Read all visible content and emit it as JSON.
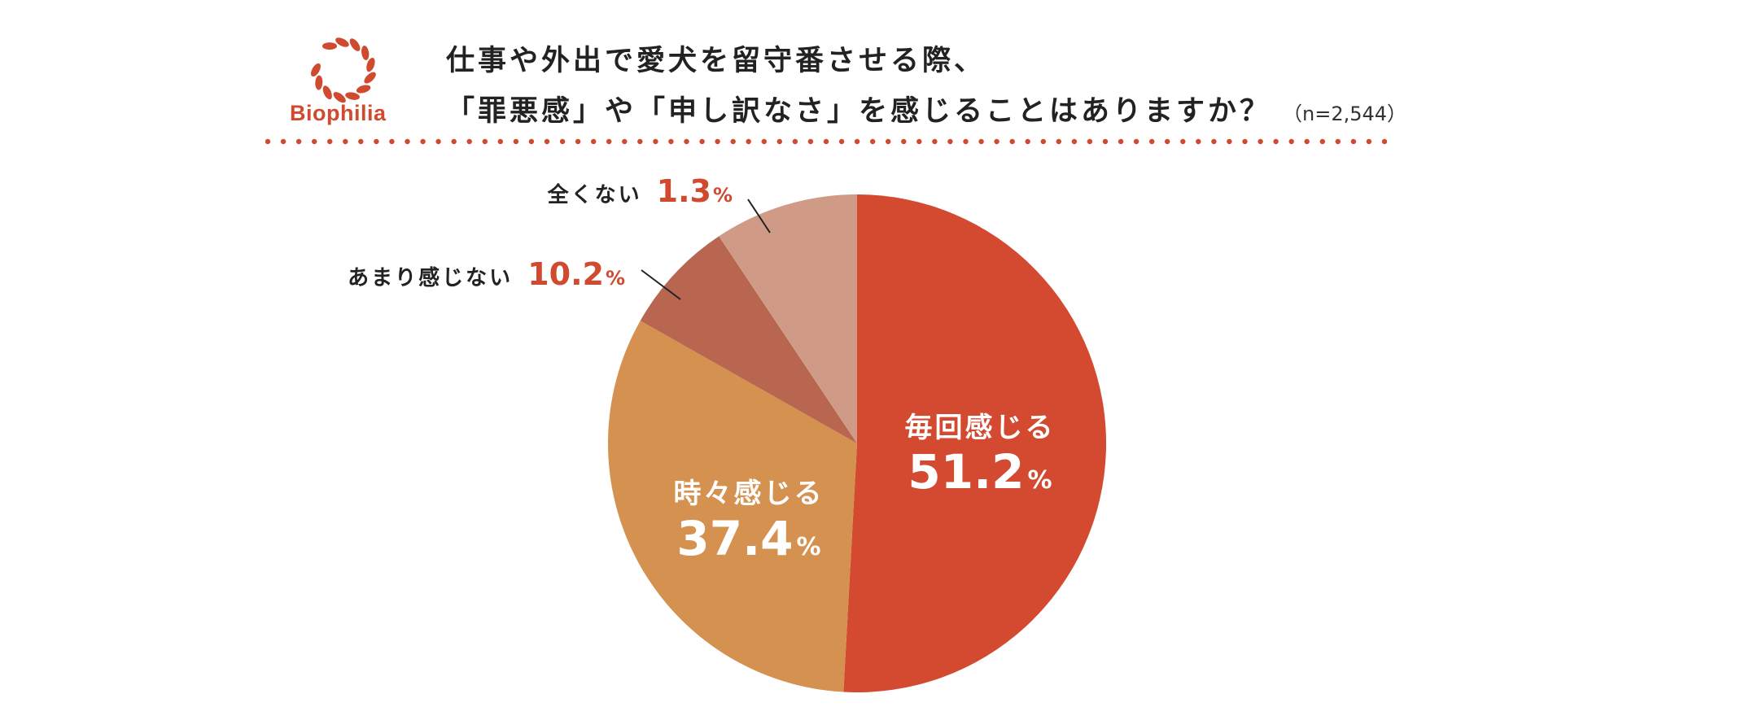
{
  "brand": {
    "name": "Biophilia",
    "color": "#d04a30"
  },
  "title": {
    "line1": "仕事や外出で愛犬を留守番させる際、",
    "line2": "「罪悪感」や「申し訳なさ」を感じることはありますか？",
    "sample_note": "（n=2,544）"
  },
  "chart_data": {
    "type": "pie",
    "start": "12 o'clock, clockwise",
    "slices": [
      {
        "label": "毎回感じる",
        "value": 51.2,
        "display": "51.2",
        "color": "#d34a30",
        "label_position": "inside"
      },
      {
        "label": "時々感じる",
        "value": 37.4,
        "display": "37.4",
        "color": "#d5914f",
        "label_position": "inside"
      },
      {
        "label": "あまり感じない",
        "value": 10.2,
        "display": "10.2",
        "color": "#b86650",
        "label_position": "outside"
      },
      {
        "label": "全くない",
        "value": 1.3,
        "display": "1.3",
        "color": "#cf9a86",
        "label_position": "outside"
      }
    ],
    "unit": "%"
  }
}
